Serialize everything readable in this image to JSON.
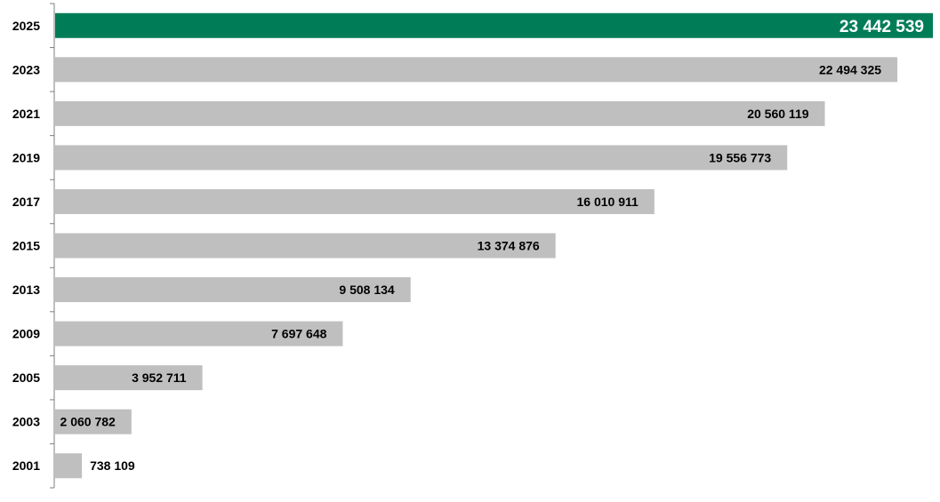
{
  "chart_data": {
    "type": "bar",
    "orientation": "horizontal",
    "title": "",
    "xlabel": "",
    "ylabel": "",
    "categories": [
      "2025",
      "2023",
      "2021",
      "2019",
      "2017",
      "2015",
      "2013",
      "2009",
      "2005",
      "2003",
      "2001"
    ],
    "values": [
      23442539,
      22494325,
      20560119,
      19556773,
      16010911,
      13374876,
      9508134,
      7697648,
      3952711,
      2060782,
      738109
    ],
    "value_labels": [
      "23 442 539",
      "22 494 325",
      "20 560 119",
      "19 556 773",
      "16 010 911",
      "13 374 876",
      "9 508 134",
      "7 697 648",
      "3 952 711",
      "2 060 782",
      "738 109"
    ],
    "highlight_index": 0,
    "xlim": [
      0,
      23442539
    ],
    "grid": false,
    "legend": "none",
    "colors": {
      "highlight": "#007D57",
      "default": "#BFBFBF",
      "axis": "#7F7F7F"
    }
  }
}
